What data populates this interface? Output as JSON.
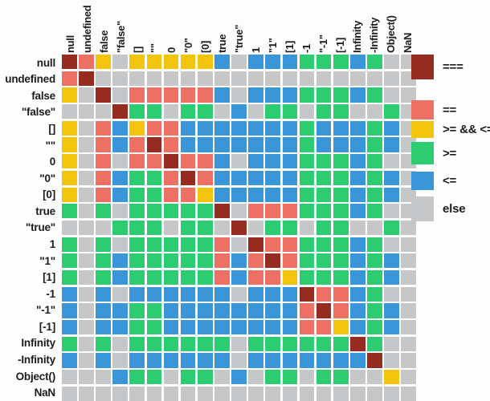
{
  "legend": [
    {
      "code": "D",
      "label": "==="
    },
    {
      "code": "S",
      "label": "=="
    },
    {
      "code": "Y",
      "label": ">= && <="
    },
    {
      "code": "G",
      "label": ">="
    },
    {
      "code": "B",
      "label": "<="
    },
    {
      "code": "X",
      "label": "else"
    }
  ],
  "chart_data": {
    "type": "heatmap",
    "categories": [
      "null",
      "undefined",
      "false",
      "\"false\"",
      "[]",
      "\"\"",
      "0",
      "\"0\"",
      "[0]",
      "true",
      "\"true\"",
      "1",
      "\"1\"",
      "[1]",
      "-1",
      "\"-1\"",
      "[-1]",
      "Infinity",
      "-Infinity",
      "Object()",
      "NaN"
    ],
    "rows": [
      "DSYXYYYYYBXBBBGGGBGXX",
      "SDXXXXXXXXXXXXXXXXXXX",
      "YXDXSSSSSBXBBBGGGBGXX",
      "XXXDGGXGGXBXGGXGGXXGX",
      "YXSBYSSBBBBBBBGBBBGBX",
      "YXSBSDSBBBBBBBGBBBGBX",
      "YXSXSSDSSBXBBBGGGBGXX",
      "YXSBGGSDSBBBBBGGGBGBX",
      "YXSBGGSSYBBBBBGGGBGBX",
      "GXGXGGGGGDXSSSGGGBGXX",
      "XXXGGGXGGXDXGGXGGXXGX",
      "GXGXGGGGGSXDSSGGGBGXX",
      "GXGBGGGGGSBSDSGGGBGBX",
      "GXGBGGGGGSBSSYGGGBGBX",
      "BXBXBBBBBBXBBBDSSBGXX",
      "BXBBGGBBBBBBBBSDSBGBX",
      "BXBBGGBBBBBBBBSSYBGBX",
      "GXGXGGGGGGXGGGGGGDGXX",
      "BXBXBBBBBBXBBBBBBBDXX",
      "XXXBGGXGGXBXGGXGGXXYX",
      "XXXXXXXXXXXXXXXXXXXXX"
    ],
    "code_legend": {
      "D": "===",
      "S": "==",
      "Y": ">= && <=",
      "G": ">=",
      "B": "<=",
      "X": "else"
    },
    "colors": {
      "D": "#962b22",
      "S": "#ec7063",
      "Y": "#f2c40e",
      "G": "#2ecc71",
      "B": "#3b96d9",
      "X": "#c6c7c9"
    },
    "legend_position": "right",
    "grid": "white gaps between cells"
  }
}
